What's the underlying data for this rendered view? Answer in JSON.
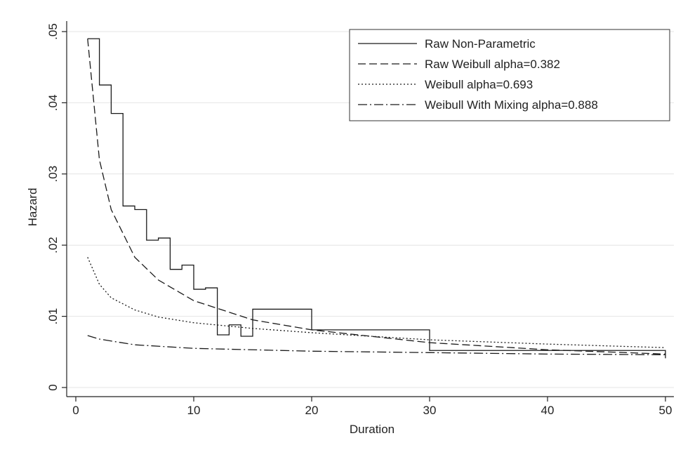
{
  "chart_data": {
    "type": "line",
    "title": "",
    "xlabel": "Duration",
    "ylabel": "Hazard",
    "xlim": [
      0,
      50
    ],
    "ylim": [
      0,
      0.05
    ],
    "xticks": [
      0,
      10,
      20,
      30,
      40,
      50
    ],
    "xtick_labels": [
      "0",
      "10",
      "20",
      "30",
      "40",
      "50"
    ],
    "yticks": [
      0,
      0.01,
      0.02,
      0.03,
      0.04,
      0.05
    ],
    "ytick_labels": [
      "0",
      ".01",
      ".02",
      ".03",
      ".04",
      ".05"
    ],
    "grid": "horizontal",
    "legend_position": "top-right",
    "series": [
      {
        "name": "Raw Non-Parametric",
        "style": "solid",
        "step": true,
        "x": [
          1,
          2,
          3,
          4,
          5,
          6,
          7,
          8,
          9,
          10,
          11,
          12,
          13,
          14,
          15,
          20,
          30,
          50
        ],
        "y": [
          0.049,
          0.0425,
          0.0385,
          0.0255,
          0.025,
          0.0207,
          0.021,
          0.0166,
          0.0172,
          0.0138,
          0.014,
          0.0074,
          0.0088,
          0.0072,
          0.011,
          0.0081,
          0.0052,
          0.0041
        ]
      },
      {
        "name": "Raw Weibull alpha=0.382",
        "style": "dashed",
        "x": [
          1,
          2,
          3,
          5,
          7,
          10,
          15,
          20,
          30,
          40,
          50
        ],
        "y": [
          0.049,
          0.032,
          0.025,
          0.0183,
          0.0151,
          0.0122,
          0.0095,
          0.0081,
          0.0063,
          0.0053,
          0.0047
        ]
      },
      {
        "name": "Weibull alpha=0.693",
        "style": "dotted",
        "x": [
          1,
          2,
          3,
          5,
          7,
          10,
          15,
          20,
          30,
          40,
          50
        ],
        "y": [
          0.0183,
          0.0145,
          0.0126,
          0.0109,
          0.0099,
          0.0091,
          0.0083,
          0.0077,
          0.0067,
          0.0061,
          0.0056
        ]
      },
      {
        "name": "Weibull With Mixing alpha=0.888",
        "style": "dashdot",
        "x": [
          1,
          2,
          5,
          10,
          15,
          20,
          30,
          40,
          50
        ],
        "y": [
          0.0073,
          0.0068,
          0.006,
          0.0055,
          0.0053,
          0.0051,
          0.0049,
          0.0047,
          0.0046
        ]
      }
    ]
  }
}
